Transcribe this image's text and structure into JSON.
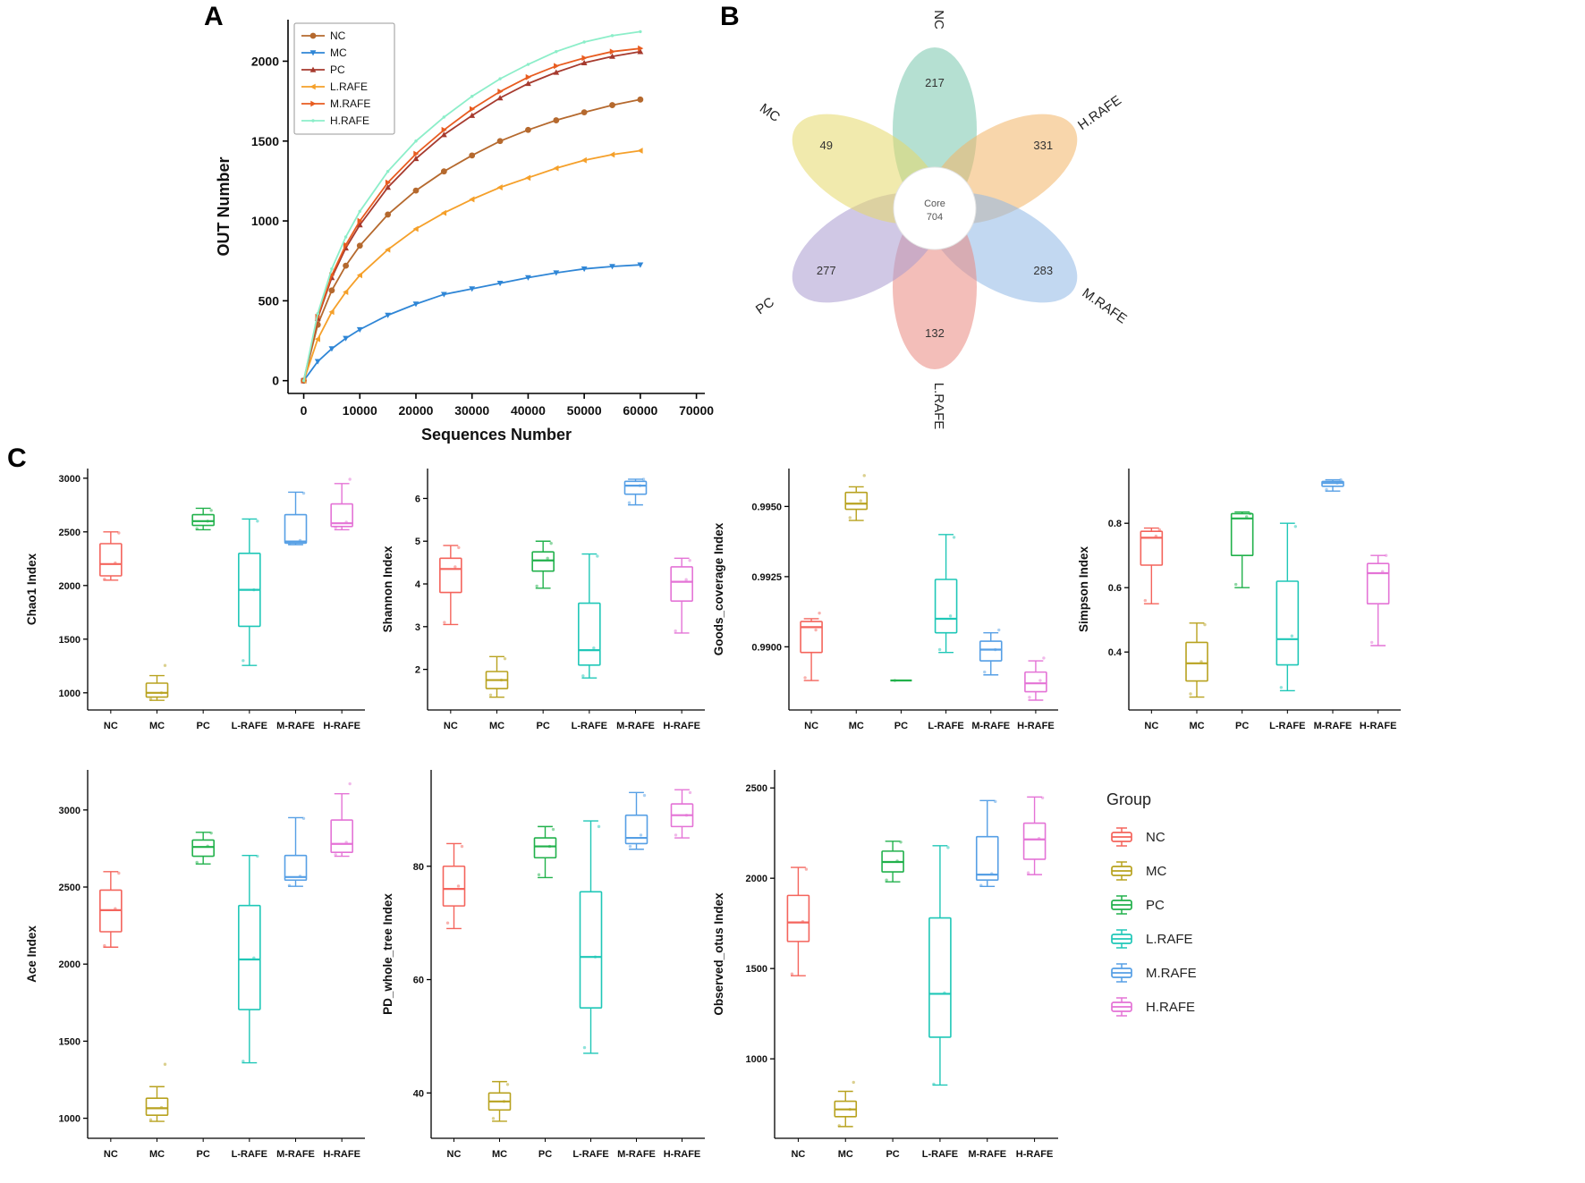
{
  "panels": {
    "a_label": "A",
    "b_label": "B",
    "c_label": "C"
  },
  "legend": {
    "title": "Group",
    "items": [
      {
        "label": "NC",
        "color": "#f4645c"
      },
      {
        "label": "MC",
        "color": "#b8a21f"
      },
      {
        "label": "PC",
        "color": "#21b14b"
      },
      {
        "label": "L.RAFE",
        "color": "#1fc7b7"
      },
      {
        "label": "M.RAFE",
        "color": "#569fe5"
      },
      {
        "label": "H.RAFE",
        "color": "#e473d6"
      }
    ]
  },
  "chart_data": [
    {
      "id": "rarefaction",
      "type": "line",
      "title": "",
      "xlabel": "Sequences Number",
      "ylabel": "OUT Number",
      "xlim": [
        -2800,
        71500
      ],
      "ylim": [
        -80,
        2260
      ],
      "xticks": [
        0,
        10000,
        20000,
        30000,
        40000,
        50000,
        60000,
        70000
      ],
      "yticks": [
        0,
        500,
        1000,
        1500,
        2000
      ],
      "legend_position": "top-left",
      "x": [
        0,
        2500,
        5000,
        7500,
        10000,
        15000,
        20000,
        25000,
        30000,
        35000,
        40000,
        45000,
        50000,
        55000,
        60000
      ],
      "series": [
        {
          "name": "NC",
          "color": "#b5692e",
          "marker": "circle",
          "values": [
            0,
            350,
            565,
            720,
            845,
            1040,
            1190,
            1310,
            1410,
            1500,
            1570,
            1630,
            1680,
            1725,
            1760
          ]
        },
        {
          "name": "MC",
          "color": "#2f86d6",
          "marker": "tri-down",
          "values": [
            0,
            120,
            200,
            265,
            320,
            410,
            480,
            540,
            575,
            610,
            645,
            675,
            700,
            715,
            725
          ]
        },
        {
          "name": "PC",
          "color": "#a63a2e",
          "marker": "tri-up",
          "values": [
            0,
            390,
            645,
            830,
            975,
            1210,
            1390,
            1540,
            1660,
            1770,
            1860,
            1930,
            1990,
            2030,
            2060
          ]
        },
        {
          "name": "L.RAFE",
          "color": "#f5a02a",
          "marker": "tri-left",
          "values": [
            0,
            260,
            430,
            555,
            660,
            820,
            950,
            1050,
            1135,
            1210,
            1270,
            1330,
            1380,
            1415,
            1440
          ]
        },
        {
          "name": "M.RAFE",
          "color": "#e85c20",
          "marker": "tri-right",
          "values": [
            0,
            400,
            660,
            850,
            1000,
            1240,
            1420,
            1570,
            1700,
            1810,
            1900,
            1970,
            2020,
            2060,
            2080
          ]
        },
        {
          "name": "H.RAFE",
          "color": "#8ceec9",
          "marker": "dot",
          "values": [
            0,
            420,
            700,
            900,
            1060,
            1310,
            1500,
            1650,
            1780,
            1890,
            1980,
            2060,
            2120,
            2160,
            2185
          ]
        }
      ]
    },
    {
      "id": "flower",
      "type": "flower",
      "core_label": "Core",
      "core_value": "704",
      "petals": [
        {
          "name": "NC",
          "value": "217",
          "color": "#79c7ad",
          "angle": -90,
          "label_rotation": 90
        },
        {
          "name": "H.RAFE",
          "value": "331",
          "color": "#f2b566",
          "angle": -30,
          "label_rotation": -35
        },
        {
          "name": "M.RAFE",
          "value": "283",
          "color": "#8fb8e6",
          "angle": 30,
          "label_rotation": 35
        },
        {
          "name": "L.RAFE",
          "value": "132",
          "color": "#e98880",
          "angle": 90,
          "label_rotation": 90
        },
        {
          "name": "PC",
          "value": "277",
          "color": "#a99bd0",
          "angle": 150,
          "label_rotation": -35
        },
        {
          "name": "MC",
          "value": "49",
          "color": "#e6d96a",
          "angle": 210,
          "label_rotation": 35
        }
      ]
    },
    {
      "id": "chao1",
      "type": "boxplot",
      "ylabel": "Chao1 Index",
      "ylim": [
        840,
        3090
      ],
      "yticks": [
        1000,
        1500,
        2000,
        2500,
        3000
      ],
      "ytick_labels": [
        "1000",
        "1500",
        "2000",
        "2500",
        "3000"
      ],
      "margin_left": 76,
      "categories": [
        "NC",
        "MC",
        "PC",
        "L-RAFE",
        "M-RAFE",
        "H-RAFE"
      ],
      "boxes": [
        {
          "low": 2050,
          "q1": 2090,
          "median": 2200,
          "q3": 2390,
          "high": 2500,
          "points": [
            2060,
            2210,
            2490
          ]
        },
        {
          "low": 930,
          "q1": 960,
          "median": 1000,
          "q3": 1090,
          "high": 1160,
          "points": [
            940,
            1000,
            1255
          ]
        },
        {
          "low": 2520,
          "q1": 2560,
          "median": 2600,
          "q3": 2660,
          "high": 2720,
          "points": [
            2530,
            2600,
            2700
          ]
        },
        {
          "low": 1255,
          "q1": 1620,
          "median": 1960,
          "q3": 2300,
          "high": 2620,
          "points": [
            1300,
            1960,
            2600
          ]
        },
        {
          "low": 2380,
          "q1": 2395,
          "median": 2410,
          "q3": 2660,
          "high": 2870,
          "points": [
            2390,
            2420,
            2860
          ]
        },
        {
          "low": 2520,
          "q1": 2550,
          "median": 2580,
          "q3": 2760,
          "high": 2950,
          "points": [
            2540,
            2590,
            2990
          ]
        }
      ]
    },
    {
      "id": "shannon",
      "type": "boxplot",
      "ylabel": "Shannon Index",
      "ylim": [
        1.05,
        6.7
      ],
      "yticks": [
        2,
        3,
        4,
        5,
        6
      ],
      "ytick_labels": [
        "2",
        "3",
        "4",
        "5",
        "6"
      ],
      "margin_left": 58,
      "categories": [
        "NC",
        "MC",
        "PC",
        "L-RAFE",
        "M-RAFE",
        "H-RAFE"
      ],
      "boxes": [
        {
          "low": 3.05,
          "q1": 3.8,
          "median": 4.35,
          "q3": 4.6,
          "high": 4.9,
          "points": [
            3.1,
            4.4,
            4.85
          ]
        },
        {
          "low": 1.35,
          "q1": 1.55,
          "median": 1.75,
          "q3": 1.95,
          "high": 2.3,
          "points": [
            1.4,
            1.75,
            2.25
          ]
        },
        {
          "low": 3.9,
          "q1": 4.3,
          "median": 4.55,
          "q3": 4.75,
          "high": 5.0,
          "points": [
            3.95,
            4.6,
            4.95
          ]
        },
        {
          "low": 1.8,
          "q1": 2.1,
          "median": 2.45,
          "q3": 3.55,
          "high": 4.7,
          "points": [
            1.85,
            2.5,
            4.65
          ]
        },
        {
          "low": 5.85,
          "q1": 6.1,
          "median": 6.3,
          "q3": 6.4,
          "high": 6.45,
          "points": [
            5.9,
            6.3,
            6.45
          ]
        },
        {
          "low": 2.85,
          "q1": 3.6,
          "median": 4.05,
          "q3": 4.4,
          "high": 4.6,
          "points": [
            2.9,
            4.1,
            4.55
          ]
        }
      ]
    },
    {
      "id": "goods_coverage",
      "type": "boxplot",
      "ylabel": "Goods_coverage Index",
      "ylim": [
        0.98775,
        0.99635
      ],
      "yticks": [
        0.99,
        0.9925,
        0.995
      ],
      "ytick_labels": [
        "0.9900",
        "0.9925",
        "0.9950"
      ],
      "margin_left": 92,
      "categories": [
        "NC",
        "MC",
        "PC",
        "L-RAFE",
        "M-RAFE",
        "H-RAFE"
      ],
      "boxes": [
        {
          "low": 0.9888,
          "q1": 0.9898,
          "median": 0.9907,
          "q3": 0.9909,
          "high": 0.991,
          "points": [
            0.9889,
            0.9906,
            0.9912
          ]
        },
        {
          "low": 0.9945,
          "q1": 0.9949,
          "median": 0.9951,
          "q3": 0.9955,
          "high": 0.9957,
          "points": [
            0.9946,
            0.9952,
            0.9961
          ]
        },
        {
          "low": 0.9888,
          "q1": 0.9888,
          "median": 0.9888,
          "q3": 0.9888,
          "high": 0.9888,
          "points": [
            0.9888
          ]
        },
        {
          "low": 0.9898,
          "q1": 0.9905,
          "median": 0.991,
          "q3": 0.9924,
          "high": 0.994,
          "points": [
            0.9899,
            0.9911,
            0.9939
          ]
        },
        {
          "low": 0.989,
          "q1": 0.9895,
          "median": 0.9899,
          "q3": 0.9902,
          "high": 0.9905,
          "points": [
            0.9891,
            0.9899,
            0.9906
          ]
        },
        {
          "low": 0.9881,
          "q1": 0.9884,
          "median": 0.9887,
          "q3": 0.9891,
          "high": 0.9895,
          "points": [
            0.9882,
            0.9888,
            0.9896
          ]
        }
      ]
    },
    {
      "id": "simpson",
      "type": "boxplot",
      "ylabel": "Simpson Index",
      "ylim": [
        0.22,
        0.97
      ],
      "yticks": [
        0.4,
        0.6,
        0.8
      ],
      "ytick_labels": [
        "0.4",
        "0.6",
        "0.8"
      ],
      "margin_left": 64,
      "categories": [
        "NC",
        "MC",
        "PC",
        "L-RAFE",
        "M-RAFE",
        "H-RAFE"
      ],
      "boxes": [
        {
          "low": 0.55,
          "q1": 0.67,
          "median": 0.755,
          "q3": 0.775,
          "high": 0.785,
          "points": [
            0.56,
            0.76,
            0.78
          ]
        },
        {
          "low": 0.26,
          "q1": 0.31,
          "median": 0.365,
          "q3": 0.43,
          "high": 0.49,
          "points": [
            0.27,
            0.37,
            0.485
          ]
        },
        {
          "low": 0.6,
          "q1": 0.7,
          "median": 0.815,
          "q3": 0.83,
          "high": 0.835,
          "points": [
            0.61,
            0.82,
            0.83
          ]
        },
        {
          "low": 0.28,
          "q1": 0.36,
          "median": 0.44,
          "q3": 0.62,
          "high": 0.8,
          "points": [
            0.29,
            0.45,
            0.79
          ]
        },
        {
          "low": 0.9,
          "q1": 0.915,
          "median": 0.925,
          "q3": 0.93,
          "high": 0.935,
          "points": [
            0.905,
            0.925,
            0.935
          ]
        },
        {
          "low": 0.42,
          "q1": 0.55,
          "median": 0.645,
          "q3": 0.675,
          "high": 0.7,
          "points": [
            0.43,
            0.65,
            0.7
          ]
        }
      ]
    },
    {
      "id": "ace",
      "type": "boxplot",
      "ylabel": "Ace Index",
      "ylim": [
        870,
        3260
      ],
      "yticks": [
        1000,
        1500,
        2000,
        2500,
        3000
      ],
      "ytick_labels": [
        "1000",
        "1500",
        "2000",
        "2500",
        "3000"
      ],
      "margin_left": 76,
      "categories": [
        "NC",
        "MC",
        "PC",
        "L-RAFE",
        "M-RAFE",
        "H-RAFE"
      ],
      "boxes": [
        {
          "low": 2110,
          "q1": 2210,
          "median": 2350,
          "q3": 2480,
          "high": 2600,
          "points": [
            2120,
            2360,
            2590
          ]
        },
        {
          "low": 980,
          "q1": 1020,
          "median": 1065,
          "q3": 1130,
          "high": 1205,
          "points": [
            990,
            1070,
            1350
          ]
        },
        {
          "low": 2650,
          "q1": 2700,
          "median": 2760,
          "q3": 2805,
          "high": 2855,
          "points": [
            2660,
            2765,
            2850
          ]
        },
        {
          "low": 1360,
          "q1": 1705,
          "median": 2030,
          "q3": 2380,
          "high": 2705,
          "points": [
            1370,
            2040,
            2700
          ]
        },
        {
          "low": 2505,
          "q1": 2545,
          "median": 2565,
          "q3": 2705,
          "high": 2950,
          "points": [
            2510,
            2570,
            2945
          ]
        },
        {
          "low": 2700,
          "q1": 2725,
          "median": 2780,
          "q3": 2935,
          "high": 3105,
          "points": [
            2710,
            2790,
            3170
          ]
        }
      ]
    },
    {
      "id": "pd_whole_tree",
      "type": "boxplot",
      "ylabel": "PD_whole_tree Index",
      "ylim": [
        32,
        97
      ],
      "yticks": [
        40,
        60,
        80
      ],
      "ytick_labels": [
        "40",
        "60",
        "80"
      ],
      "margin_left": 62,
      "categories": [
        "NC",
        "MC",
        "PC",
        "L-RAFE",
        "M-RAFE",
        "H-RAFE"
      ],
      "boxes": [
        {
          "low": 69,
          "q1": 73,
          "median": 76,
          "q3": 80,
          "high": 84,
          "points": [
            70,
            76.5,
            83.5
          ]
        },
        {
          "low": 35,
          "q1": 37,
          "median": 38.5,
          "q3": 40,
          "high": 42,
          "points": [
            35.5,
            38.5,
            41.5
          ]
        },
        {
          "low": 78,
          "q1": 81.5,
          "median": 83.5,
          "q3": 85,
          "high": 87,
          "points": [
            78.5,
            83.5,
            86.5
          ]
        },
        {
          "low": 47,
          "q1": 55,
          "median": 64,
          "q3": 75.5,
          "high": 88,
          "points": [
            48,
            64,
            87
          ]
        },
        {
          "low": 83,
          "q1": 84,
          "median": 85,
          "q3": 89,
          "high": 93,
          "points": [
            83.5,
            85.5,
            92.5
          ]
        },
        {
          "low": 85,
          "q1": 87,
          "median": 89,
          "q3": 91,
          "high": 93.5,
          "points": [
            85.5,
            89,
            93
          ]
        }
      ]
    },
    {
      "id": "observed_otus",
      "type": "boxplot",
      "ylabel": "Observed_otus Index",
      "ylim": [
        560,
        2600
      ],
      "yticks": [
        1000,
        1500,
        2000,
        2500
      ],
      "ytick_labels": [
        "1000",
        "1500",
        "2000",
        "2500"
      ],
      "margin_left": 76,
      "categories": [
        "NC",
        "MC",
        "PC",
        "L-RAFE",
        "M-RAFE",
        "H-RAFE"
      ],
      "boxes": [
        {
          "low": 1460,
          "q1": 1650,
          "median": 1755,
          "q3": 1905,
          "high": 2060,
          "points": [
            1470,
            1760,
            2050
          ]
        },
        {
          "low": 625,
          "q1": 680,
          "median": 720,
          "q3": 765,
          "high": 820,
          "points": [
            630,
            720,
            870
          ]
        },
        {
          "low": 1980,
          "q1": 2035,
          "median": 2090,
          "q3": 2150,
          "high": 2205,
          "points": [
            1990,
            2095,
            2200
          ]
        },
        {
          "low": 855,
          "q1": 1120,
          "median": 1360,
          "q3": 1780,
          "high": 2180,
          "points": [
            860,
            1365,
            2170
          ]
        },
        {
          "low": 1955,
          "q1": 1990,
          "median": 2020,
          "q3": 2230,
          "high": 2430,
          "points": [
            1960,
            2025,
            2425
          ]
        },
        {
          "low": 2020,
          "q1": 2105,
          "median": 2215,
          "q3": 2305,
          "high": 2450,
          "points": [
            2030,
            2220,
            2445
          ]
        }
      ]
    }
  ]
}
